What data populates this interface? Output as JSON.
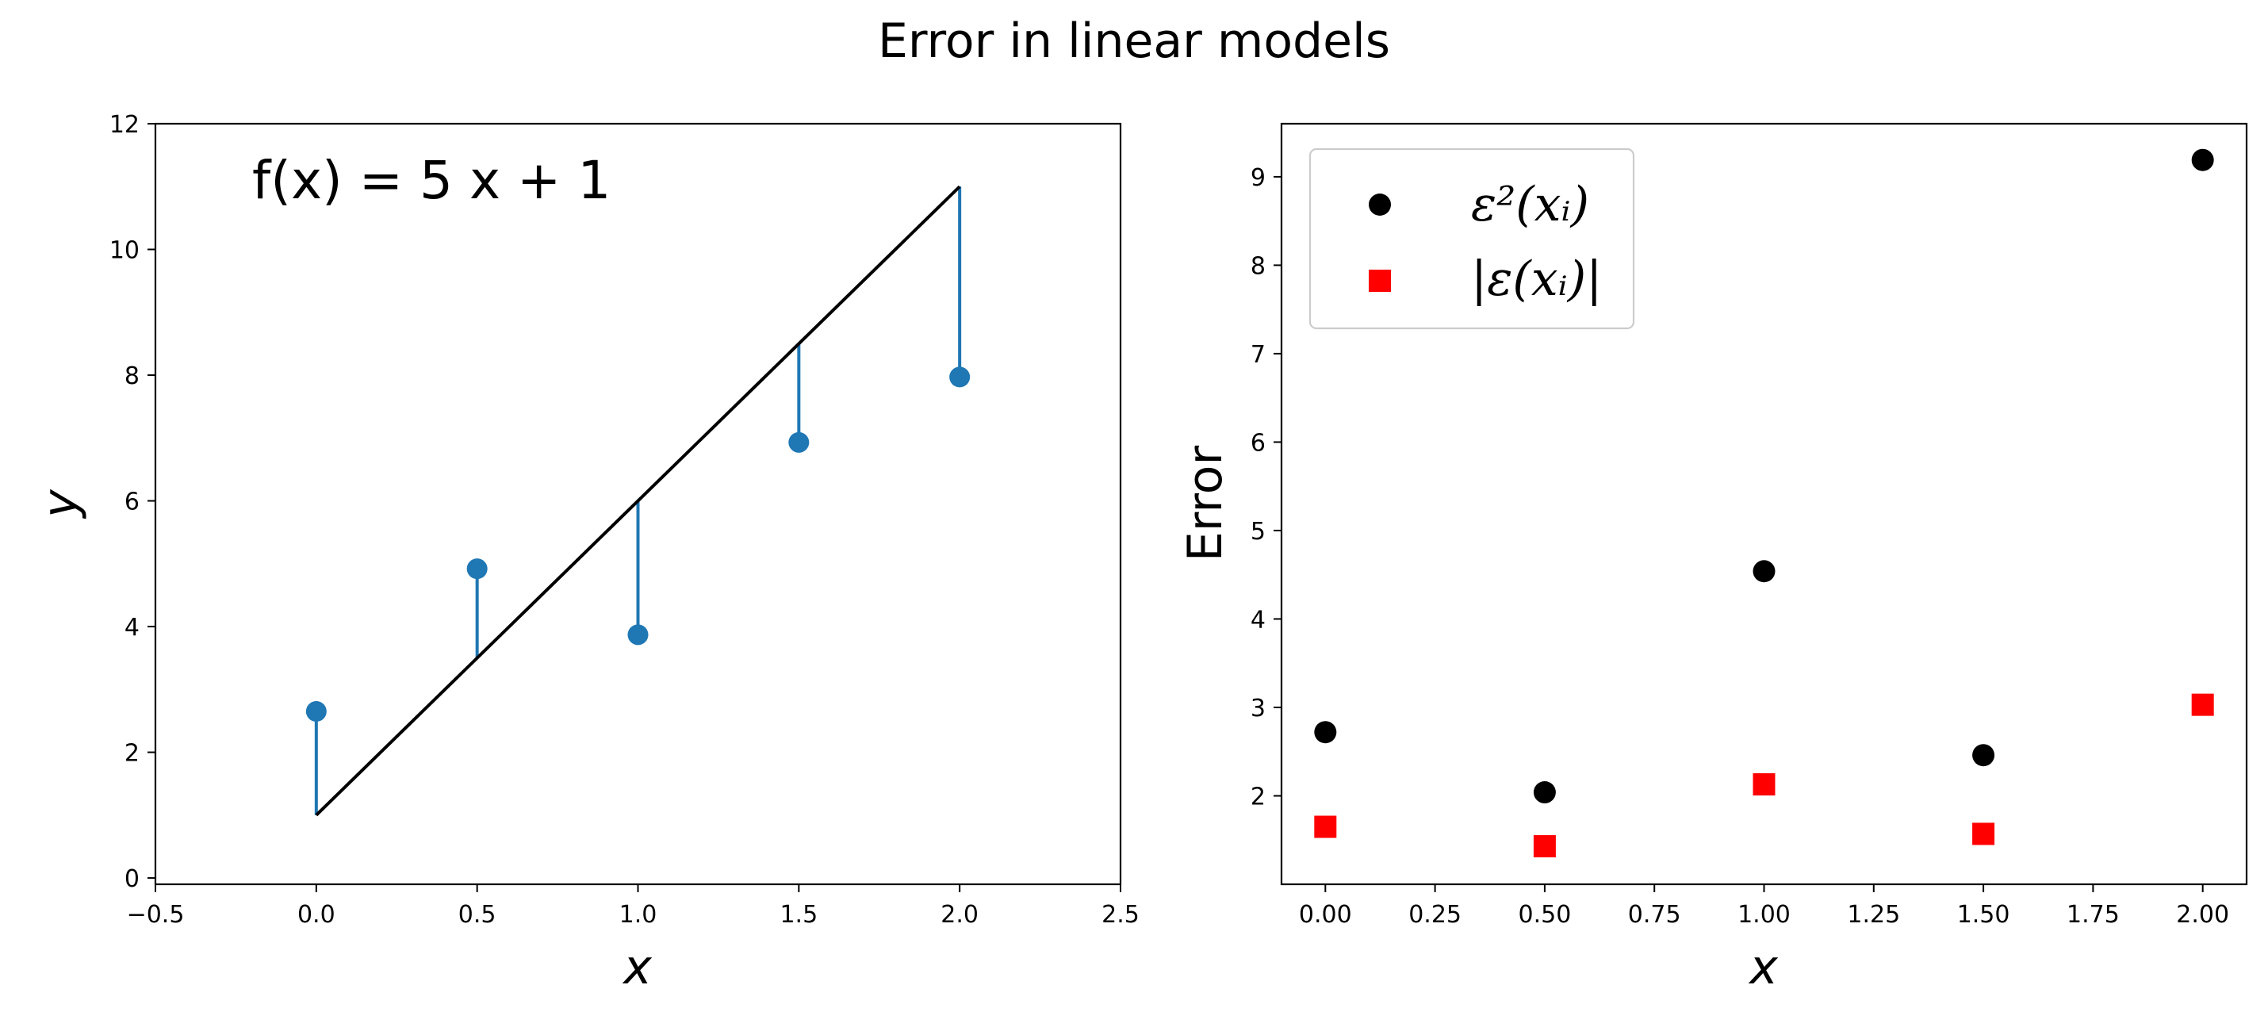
{
  "figure": {
    "suptitle": "Error in linear models"
  },
  "chart_data": [
    {
      "type": "scatter",
      "title": "",
      "xlabel": "x",
      "ylabel": "y",
      "xlim": [
        -0.5,
        2.5
      ],
      "ylim": [
        -0.1,
        12
      ],
      "xticks": [
        -0.5,
        0.0,
        0.5,
        1.0,
        1.5,
        2.0,
        2.5
      ],
      "xtick_labels": [
        "−0.5",
        "0.0",
        "0.5",
        "1.0",
        "1.5",
        "2.0",
        "2.5"
      ],
      "yticks": [
        0,
        2,
        4,
        6,
        8,
        10,
        12
      ],
      "ytick_labels": [
        "0",
        "2",
        "4",
        "6",
        "8",
        "10",
        "12"
      ],
      "grid": false,
      "annotation": "f(x) = 5 x  + 1",
      "model_line": {
        "slope": 5,
        "intercept": 1,
        "x_range": [
          0,
          2
        ],
        "color": "#000000"
      },
      "points": {
        "x": [
          0.0,
          0.5,
          1.0,
          1.5,
          2.0
        ],
        "y": [
          2.65,
          4.92,
          3.87,
          6.93,
          7.97
        ],
        "color": "#1f77b4"
      }
    },
    {
      "type": "scatter",
      "title": "",
      "xlabel": "x",
      "ylabel": "Error",
      "xlim": [
        -0.1,
        2.1
      ],
      "ylim": [
        1.0,
        9.6
      ],
      "xticks": [
        0.0,
        0.25,
        0.5,
        0.75,
        1.0,
        1.25,
        1.5,
        1.75,
        2.0
      ],
      "xtick_labels": [
        "0.00",
        "0.25",
        "0.50",
        "0.75",
        "1.00",
        "1.25",
        "1.50",
        "1.75",
        "2.00"
      ],
      "yticks": [
        2,
        3,
        4,
        5,
        6,
        7,
        8,
        9
      ],
      "ytick_labels": [
        "2",
        "3",
        "4",
        "5",
        "6",
        "7",
        "8",
        "9"
      ],
      "grid": false,
      "legend_position": "top-left",
      "series": [
        {
          "name": "ε²(xᵢ)",
          "marker": "circle",
          "color": "#000000",
          "x": [
            0.0,
            0.5,
            1.0,
            1.5,
            2.0
          ],
          "values": [
            2.72,
            2.04,
            4.54,
            2.46,
            9.19
          ]
        },
        {
          "name": "|ε(xᵢ)|",
          "marker": "square",
          "color": "#ff0000",
          "x": [
            0.0,
            0.5,
            1.0,
            1.5,
            2.0
          ],
          "values": [
            1.65,
            1.43,
            2.13,
            1.57,
            3.03
          ]
        }
      ]
    }
  ]
}
